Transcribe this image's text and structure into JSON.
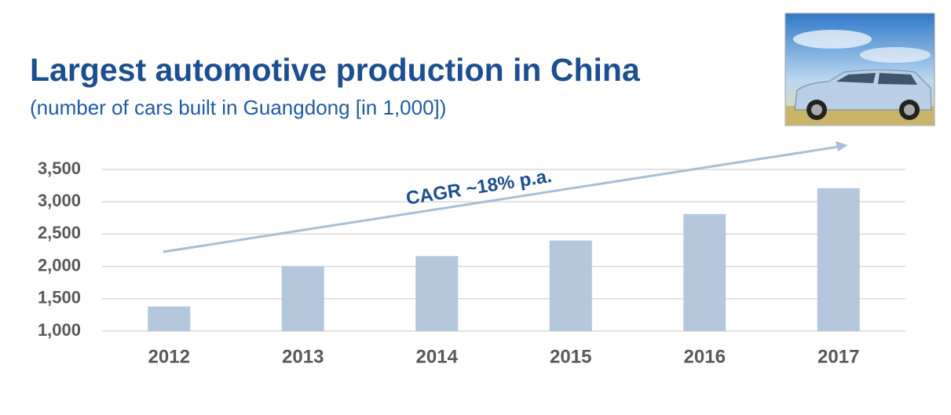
{
  "chart_data": {
    "type": "bar",
    "title": "Largest automotive production in China",
    "subtitle": "(number of cars built in Guangdong [in 1,000])",
    "annotation": "CAGR ~18% p.a.",
    "categories": [
      "2012",
      "2013",
      "2014",
      "2015",
      "2016",
      "2017"
    ],
    "values": [
      1380,
      2000,
      2160,
      2400,
      2810,
      3210
    ],
    "color": "#b4c7dd",
    "ylim": [
      1000,
      3500
    ],
    "yticks": [
      {
        "value": 1000,
        "label": "1,000"
      },
      {
        "value": 1500,
        "label": "1,500"
      },
      {
        "value": 2000,
        "label": "2,000"
      },
      {
        "value": 2500,
        "label": "2,500"
      },
      {
        "value": 3000,
        "label": "3,000"
      },
      {
        "value": 3500,
        "label": "3,500"
      }
    ],
    "grid": true
  }
}
